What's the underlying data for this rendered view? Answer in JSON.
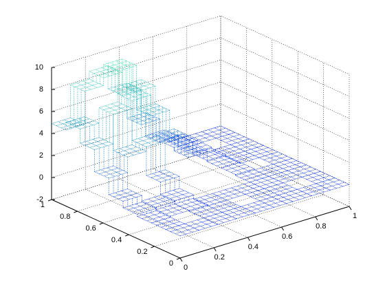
{
  "chart_data": {
    "type": "mesh3d",
    "x": [
      0.056,
      0.167,
      0.278,
      0.389,
      0.5,
      0.611,
      0.722,
      0.833,
      0.944
    ],
    "y": [
      0.056,
      0.167,
      0.278,
      0.389,
      0.5,
      0.611,
      0.722,
      0.833,
      0.944
    ],
    "z": [
      [
        0,
        0,
        0,
        0,
        0,
        0,
        0,
        0,
        0
      ],
      [
        0,
        null,
        0,
        0,
        null,
        0,
        0,
        null,
        0
      ],
      [
        0,
        0.1,
        0.1,
        0,
        0,
        0,
        0,
        0,
        0
      ],
      [
        0.2,
        0.3,
        0.4,
        null,
        null,
        null,
        0,
        0,
        0
      ],
      [
        0.8,
        null,
        1.5,
        null,
        null,
        null,
        0.1,
        null,
        0
      ],
      [
        2.3,
        3.7,
        4.1,
        null,
        null,
        null,
        0.1,
        0,
        0
      ],
      [
        4.3,
        7,
        7.7,
        5.8,
        3,
        1,
        0.2,
        0,
        0
      ],
      [
        5.6,
        null,
        9.8,
        7.4,
        null,
        1.3,
        0.3,
        null,
        0
      ],
      [
        4.9,
        7.9,
        8.6,
        6.5,
        3.3,
        1.2,
        0.3,
        0,
        0
      ]
    ],
    "xlim": [
      0,
      1
    ],
    "ylim": [
      0,
      1
    ],
    "zlim": [
      -2,
      10
    ],
    "xticks": [
      0,
      0.2,
      0.4,
      0.6,
      0.8,
      1
    ],
    "yticks": [
      0,
      0.2,
      0.4,
      0.6,
      0.8,
      1
    ],
    "zticks": [
      -2,
      0,
      2,
      4,
      6,
      8,
      10
    ],
    "colormap": [
      "#0000ff",
      "#1c8cc8",
      "#44e6a8"
    ],
    "grid": true
  }
}
